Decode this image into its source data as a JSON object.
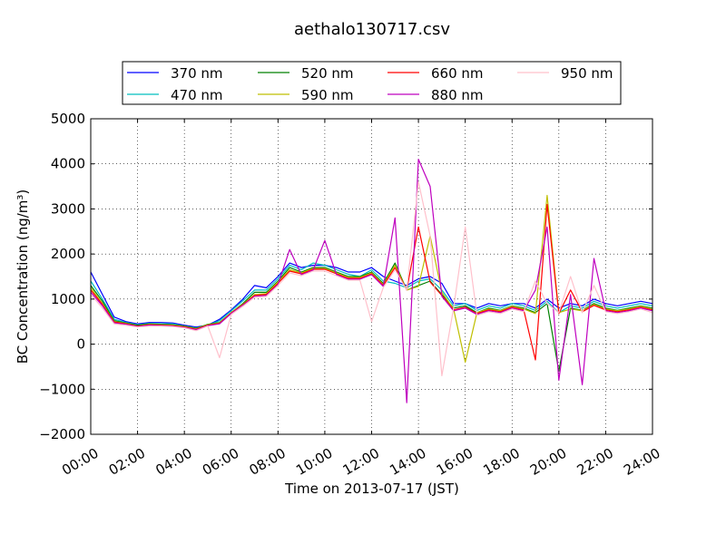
{
  "chart_data": {
    "type": "line",
    "title": "aethalo130717.csv",
    "xlabel": "Time on 2013-07-17 (JST)",
    "ylabel": "BC Concentration (ng/m³)",
    "x_units": "hours since 00:00 JST",
    "xlim": [
      0,
      24
    ],
    "ylim": [
      -2000,
      5000
    ],
    "x_ticks": [
      "00:00",
      "02:00",
      "04:00",
      "06:00",
      "08:00",
      "10:00",
      "12:00",
      "14:00",
      "16:00",
      "18:00",
      "20:00",
      "22:00",
      "24:00"
    ],
    "y_ticks": [
      "5000",
      "4000",
      "3000",
      "2000",
      "1000",
      "0",
      "−1000",
      "−2000"
    ],
    "grid": true,
    "legend_position": "top",
    "x": [
      0,
      0.5,
      1,
      1.5,
      2,
      2.5,
      3,
      3.5,
      4,
      4.5,
      5,
      5.5,
      6,
      6.5,
      7,
      7.5,
      8,
      8.5,
      9,
      9.5,
      10,
      10.5,
      11,
      11.5,
      12,
      12.5,
      13,
      13.5,
      14,
      14.5,
      15,
      15.5,
      16,
      16.5,
      17,
      17.5,
      18,
      18.5,
      19,
      19.5,
      20,
      20.5,
      21,
      21.5,
      22,
      22.5,
      23,
      23.5,
      24
    ],
    "series": [
      {
        "name": "370 nm",
        "color": "#0000ff",
        "values": [
          1600,
          1100,
          600,
          500,
          450,
          480,
          480,
          470,
          420,
          380,
          420,
          550,
          760,
          1000,
          1300,
          1250,
          1500,
          1800,
          1700,
          1750,
          1750,
          1700,
          1600,
          1600,
          1700,
          1500,
          1400,
          1300,
          1450,
          1500,
          1350,
          900,
          900,
          800,
          900,
          850,
          900,
          900,
          800,
          1000,
          800,
          900,
          850,
          1000,
          900,
          850,
          900,
          950,
          900
        ]
      },
      {
        "name": "470 nm",
        "color": "#00bfbf",
        "values": [
          1400,
          1000,
          550,
          480,
          430,
          460,
          450,
          450,
          400,
          360,
          420,
          520,
          740,
          960,
          1200,
          1200,
          1450,
          1750,
          1650,
          1800,
          1750,
          1650,
          1550,
          1500,
          1650,
          1400,
          1350,
          1250,
          1400,
          1450,
          1200,
          850,
          900,
          750,
          850,
          800,
          900,
          850,
          750,
          950,
          700,
          850,
          800,
          950,
          850,
          800,
          850,
          900,
          850
        ]
      },
      {
        "name": "520 nm",
        "color": "#008000",
        "values": [
          1300,
          950,
          520,
          470,
          420,
          450,
          440,
          430,
          400,
          350,
          440,
          480,
          700,
          900,
          1150,
          1150,
          1400,
          1700,
          1600,
          1700,
          1700,
          1600,
          1500,
          1500,
          1600,
          1350,
          1800,
          1200,
          1300,
          1400,
          1100,
          800,
          850,
          700,
          800,
          750,
          850,
          800,
          700,
          900,
          -600,
          800,
          750,
          900,
          800,
          750,
          800,
          850,
          800
        ]
      },
      {
        "name": "590 nm",
        "color": "#bfbf00",
        "values": [
          1250,
          900,
          500,
          460,
          400,
          440,
          430,
          420,
          390,
          340,
          430,
          470,
          700,
          880,
          1100,
          1120,
          1380,
          1650,
          1580,
          1680,
          1680,
          1580,
          1480,
          1480,
          1580,
          1320,
          1750,
          1200,
          1280,
          2400,
          1150,
          780,
          -400,
          700,
          780,
          740,
          840,
          780,
          680,
          3300,
          700,
          780,
          740,
          880,
          780,
          740,
          780,
          840,
          780
        ]
      },
      {
        "name": "660 nm",
        "color": "#ff0000",
        "values": [
          1200,
          880,
          490,
          450,
          400,
          430,
          420,
          410,
          380,
          330,
          420,
          460,
          690,
          870,
          1080,
          1100,
          1350,
          1620,
          1560,
          1660,
          1660,
          1560,
          1460,
          1460,
          1560,
          1300,
          1700,
          1200,
          2600,
          1380,
          1080,
          760,
          820,
          680,
          760,
          720,
          820,
          760,
          -350,
          3100,
          680,
          1200,
          720,
          860,
          760,
          720,
          760,
          820,
          760
        ]
      },
      {
        "name": "880 nm",
        "color": "#bf00bf",
        "values": [
          1150,
          850,
          470,
          440,
          390,
          420,
          410,
          400,
          370,
          320,
          410,
          450,
          680,
          860,
          1060,
          1080,
          1320,
          2100,
          1540,
          1640,
          2300,
          1540,
          1440,
          1440,
          1540,
          1280,
          2800,
          -1300,
          4100,
          3500,
          1060,
          740,
          800,
          660,
          740,
          700,
          800,
          740,
          1200,
          2600,
          -800,
          1100,
          -900,
          1900,
          740,
          700,
          740,
          800,
          740
        ]
      },
      {
        "name": "950 nm",
        "color": "#ffc0cb",
        "values": [
          1100,
          800,
          450,
          420,
          380,
          400,
          400,
          390,
          360,
          300,
          400,
          -300,
          660,
          840,
          1040,
          1060,
          1300,
          1580,
          1520,
          1620,
          1620,
          1520,
          1420,
          1420,
          500,
          1260,
          1650,
          1200,
          3600,
          2400,
          -700,
          800,
          2600,
          640,
          720,
          680,
          780,
          720,
          1400,
          900,
          700,
          1500,
          700,
          1300,
          720,
          680,
          720,
          780,
          700
        ]
      }
    ]
  }
}
